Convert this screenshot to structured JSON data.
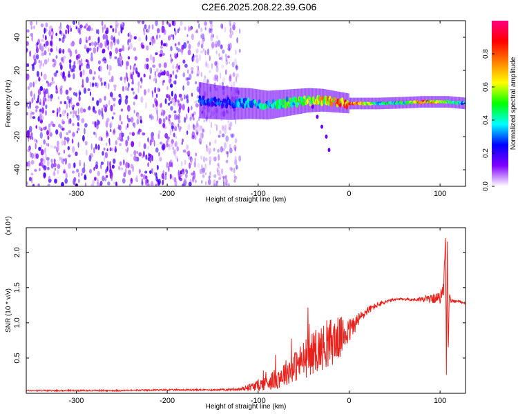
{
  "title": "C2E6.2025.208.22.39.G06",
  "chart_data": [
    {
      "type": "heatmap",
      "xlabel": "Height of straight line (km)",
      "ylabel": "Frequency (Hz)",
      "xlim": [
        -355,
        128
      ],
      "ylim": [
        -50,
        50
      ],
      "xticks": [
        -300,
        -200,
        -100,
        0,
        100
      ],
      "xtick_labels": [
        "-300",
        "-200",
        "-100",
        "0",
        "100"
      ],
      "yticks": [
        -40,
        -20,
        0,
        20,
        40
      ],
      "ytick_labels": [
        "-40",
        "-20",
        "0",
        "20",
        "40"
      ],
      "colorbar": {
        "label": "Normalized spectral amplitude",
        "range": [
          0,
          1
        ],
        "ticks": [
          0.0,
          0.2,
          0.4,
          0.6,
          0.8
        ],
        "tick_labels": [
          "0.0",
          "0.2",
          "0.4",
          "0.6",
          "0.8"
        ],
        "colors": [
          "#ffffff",
          "#8000ff",
          "#0000ff",
          "#00ffff",
          "#00ff00",
          "#ffff00",
          "#ff8000",
          "#ff0000",
          "#ff0080"
        ]
      },
      "noise_band": {
        "x_range": [
          -355,
          -120
        ],
        "freq_range": [
          -50,
          50
        ],
        "amplitude": 0.12
      },
      "signal_track": [
        {
          "x": -165,
          "freq": 2,
          "amplitude": 0.3
        },
        {
          "x": -150,
          "freq": 1,
          "amplitude": 0.3
        },
        {
          "x": -130,
          "freq": 0,
          "amplitude": 0.32
        },
        {
          "x": -110,
          "freq": 0,
          "amplitude": 0.38
        },
        {
          "x": -90,
          "freq": -1,
          "amplitude": 0.45
        },
        {
          "x": -75,
          "freq": 0,
          "amplitude": 0.48
        },
        {
          "x": -60,
          "freq": 1,
          "amplitude": 0.52
        },
        {
          "x": -45,
          "freq": 2,
          "amplitude": 0.6
        },
        {
          "x": -30,
          "freq": 2,
          "amplitude": 0.7
        },
        {
          "x": -15,
          "freq": 1,
          "amplitude": 0.8
        },
        {
          "x": 0,
          "freq": 0,
          "amplitude": 0.95
        },
        {
          "x": 30,
          "freq": 0,
          "amplitude": 0.5
        },
        {
          "x": 60,
          "freq": 0.5,
          "amplitude": 0.5
        },
        {
          "x": 80,
          "freq": 1,
          "amplitude": 0.9
        },
        {
          "x": 95,
          "freq": 1,
          "amplitude": 0.7
        },
        {
          "x": 108,
          "freq": 1,
          "amplitude": 0.55
        },
        {
          "x": 128,
          "freq": 0,
          "amplitude": 0.4
        }
      ],
      "secondary_track": [
        {
          "x": -40,
          "freq": -2
        },
        {
          "x": -35,
          "freq": -8
        },
        {
          "x": -30,
          "freq": -14
        },
        {
          "x": -25,
          "freq": -20
        },
        {
          "x": -22,
          "freq": -28
        }
      ]
    },
    {
      "type": "line",
      "xlabel": "Height of straight line (km)",
      "ylabel": "SNR (10 * v/v)",
      "yscale_label": "(x10⁴)",
      "xlim": [
        -355,
        128
      ],
      "ylim": [
        0,
        2.35
      ],
      "xticks": [
        -300,
        -200,
        -100,
        0,
        100
      ],
      "xtick_labels": [
        "-300",
        "-200",
        "-100",
        "0",
        "100"
      ],
      "yticks": [
        0.5,
        1.0,
        1.5,
        2.0
      ],
      "ytick_labels": [
        "0.5",
        "1.0",
        "1.5",
        "2.0"
      ],
      "series": [
        {
          "color": "#e8211b",
          "x": [
            -355,
            -300,
            -250,
            -200,
            -150,
            -120,
            -100,
            -80,
            -60,
            -50,
            -40,
            -30,
            -20,
            -10,
            0,
            10,
            20,
            30,
            40,
            50,
            60,
            70,
            80,
            90,
            100,
            104,
            106,
            107,
            108,
            109,
            110,
            112,
            115,
            120,
            128
          ],
          "y": [
            0.04,
            0.04,
            0.04,
            0.05,
            0.05,
            0.06,
            0.12,
            0.22,
            0.4,
            0.5,
            0.6,
            0.68,
            0.76,
            0.82,
            0.9,
            1.05,
            1.18,
            1.25,
            1.3,
            1.33,
            1.34,
            1.33,
            1.34,
            1.35,
            1.36,
            1.5,
            2.3,
            0.3,
            2.25,
            0.5,
            1.4,
            1.32,
            1.3,
            1.31,
            1.28
          ],
          "noise_amplitude": [
            0.01,
            0.01,
            0.01,
            0.01,
            0.01,
            0.02,
            0.08,
            0.15,
            0.22,
            0.28,
            0.3,
            0.32,
            0.35,
            0.3,
            0.18,
            0.1,
            0.06,
            0.04,
            0.03,
            0.02,
            0.02,
            0.02,
            0.04,
            0.06,
            0.08,
            0.1,
            0.1,
            0.1,
            0.1,
            0.1,
            0.06,
            0.03,
            0.02,
            0.02,
            0.02
          ]
        }
      ]
    }
  ]
}
